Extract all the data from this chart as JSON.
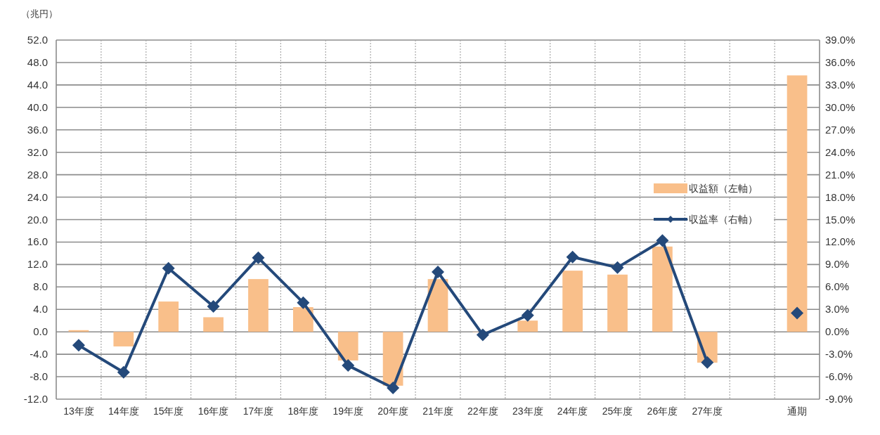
{
  "chart_data": {
    "type": "bar",
    "ylabel": "（兆円）",
    "categories": [
      "13年度",
      "14年度",
      "15年度",
      "16年度",
      "17年度",
      "18年度",
      "19年度",
      "20年度",
      "21年度",
      "22年度",
      "23年度",
      "24年度",
      "25年度",
      "26年度",
      "27年度",
      null,
      "通期"
    ],
    "series": [
      {
        "name": "収益額（左軸）",
        "color": "#f9bf8a",
        "values": [
          0.3,
          -2.6,
          5.4,
          2.6,
          9.4,
          4.4,
          -5.1,
          -9.6,
          9.4,
          0,
          2.0,
          10.9,
          10.2,
          15.2,
          -5.5,
          null,
          45.7
        ]
      },
      {
        "name": "収益率（右軸）",
        "type": "line",
        "axis": "y2",
        "marker": "diamond",
        "color": "#24497a",
        "values": [
          -1.8,
          -5.4,
          8.5,
          3.4,
          9.9,
          3.9,
          -4.5,
          -7.5,
          8.0,
          -0.4,
          2.2,
          10.0,
          8.6,
          12.2,
          -4.1,
          null,
          2.5
        ]
      }
    ],
    "ylim": [
      -12,
      52
    ],
    "yticks": [
      {
        "value": -12,
        "label": "-12.0"
      },
      {
        "value": -8,
        "label": "-8.0"
      },
      {
        "value": -4,
        "label": "-4.0"
      },
      {
        "value": 0,
        "label": "0.0"
      },
      {
        "value": 4,
        "label": "4.0"
      },
      {
        "value": 8,
        "label": "8.0"
      },
      {
        "value": 12,
        "label": "12.0"
      },
      {
        "value": 16,
        "label": "16.0"
      },
      {
        "value": 20,
        "label": "20.0"
      },
      {
        "value": 24,
        "label": "24.0"
      },
      {
        "value": 28,
        "label": "28.0"
      },
      {
        "value": 32,
        "label": "32.0"
      },
      {
        "value": 36,
        "label": "36.0"
      },
      {
        "value": 40,
        "label": "40.0"
      },
      {
        "value": 44,
        "label": "44.0"
      },
      {
        "value": 48,
        "label": "48.0"
      },
      {
        "value": 52,
        "label": "52.0"
      }
    ],
    "y2lim": [
      -9,
      39
    ],
    "y2ticks": [
      {
        "value": -9,
        "label": "-9.0%"
      },
      {
        "value": -6,
        "label": "-6.0%"
      },
      {
        "value": -3,
        "label": "-3.0%"
      },
      {
        "value": 0,
        "label": "0.0%"
      },
      {
        "value": 3,
        "label": "3.0%"
      },
      {
        "value": 6,
        "label": "6.0%"
      },
      {
        "value": 9,
        "label": "9.0%"
      },
      {
        "value": 12,
        "label": "12.0%"
      },
      {
        "value": 15,
        "label": "15.0%"
      },
      {
        "value": 18,
        "label": "18.0%"
      },
      {
        "value": 21,
        "label": "21.0%"
      },
      {
        "value": 24,
        "label": "24.0%"
      },
      {
        "value": 27,
        "label": "27.0%"
      },
      {
        "value": 30,
        "label": "30.0%"
      },
      {
        "value": 33,
        "label": "33.0%"
      },
      {
        "value": 36,
        "label": "36.0%"
      },
      {
        "value": 39,
        "label": "39.0%"
      }
    ],
    "grid": true,
    "legend": "right"
  }
}
